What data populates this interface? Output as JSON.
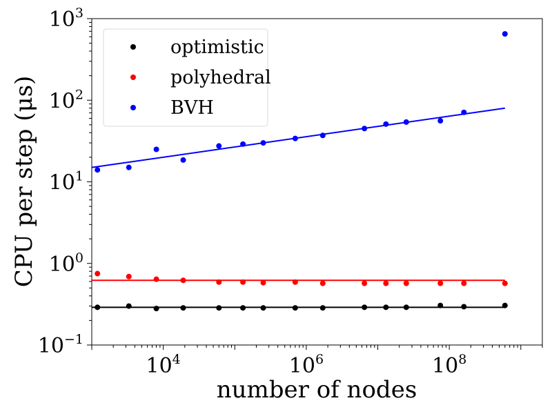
{
  "chart_data": {
    "type": "scatter",
    "title": "",
    "xlabel": "number of nodes",
    "ylabel": "CPU per step (μs)",
    "xscale": "log",
    "yscale": "log",
    "xlim": [
      1000,
      2000000000
    ],
    "ylim": [
      0.1,
      1000
    ],
    "x_ticks": [
      {
        "value": 10000,
        "base": "10",
        "exp": "4"
      },
      {
        "value": 1000000,
        "base": "10",
        "exp": "6"
      },
      {
        "value": 100000000,
        "base": "10",
        "exp": "8"
      }
    ],
    "y_ticks": [
      {
        "value": 0.1,
        "base": "10",
        "exp": "−1"
      },
      {
        "value": 1,
        "base": "10",
        "exp": "0"
      },
      {
        "value": 10,
        "base": "10",
        "exp": "1"
      },
      {
        "value": 100,
        "base": "10",
        "exp": "2"
      },
      {
        "value": 1000,
        "base": "10",
        "exp": "3"
      }
    ],
    "legend_position": "top-left",
    "x": [
      1200,
      3300,
      8000,
      19000,
      60000,
      130000,
      250000,
      700000,
      1700000,
      6500000,
      13000000,
      25000000,
      75000000,
      160000000,
      600000000
    ],
    "series": [
      {
        "name": "optimistic",
        "color": "#000000",
        "values": [
          0.29,
          0.3,
          0.28,
          0.285,
          0.285,
          0.285,
          0.285,
          0.285,
          0.285,
          0.29,
          0.29,
          0.29,
          0.305,
          0.295,
          0.305
        ],
        "fit": [
          0.29,
          0.29
        ]
      },
      {
        "name": "polyhedral",
        "color": "#ff0000",
        "values": [
          0.75,
          0.69,
          0.64,
          0.62,
          0.59,
          0.59,
          0.58,
          0.59,
          0.57,
          0.57,
          0.57,
          0.57,
          0.57,
          0.57,
          0.57
        ],
        "fit": [
          0.62,
          0.62
        ]
      },
      {
        "name": "BVH",
        "color": "#0000ff",
        "values": [
          14,
          15,
          25,
          18.5,
          27.5,
          29,
          30,
          34,
          37,
          45,
          51,
          54,
          56,
          71,
          650
        ],
        "fit": [
          15,
          80
        ]
      }
    ]
  }
}
